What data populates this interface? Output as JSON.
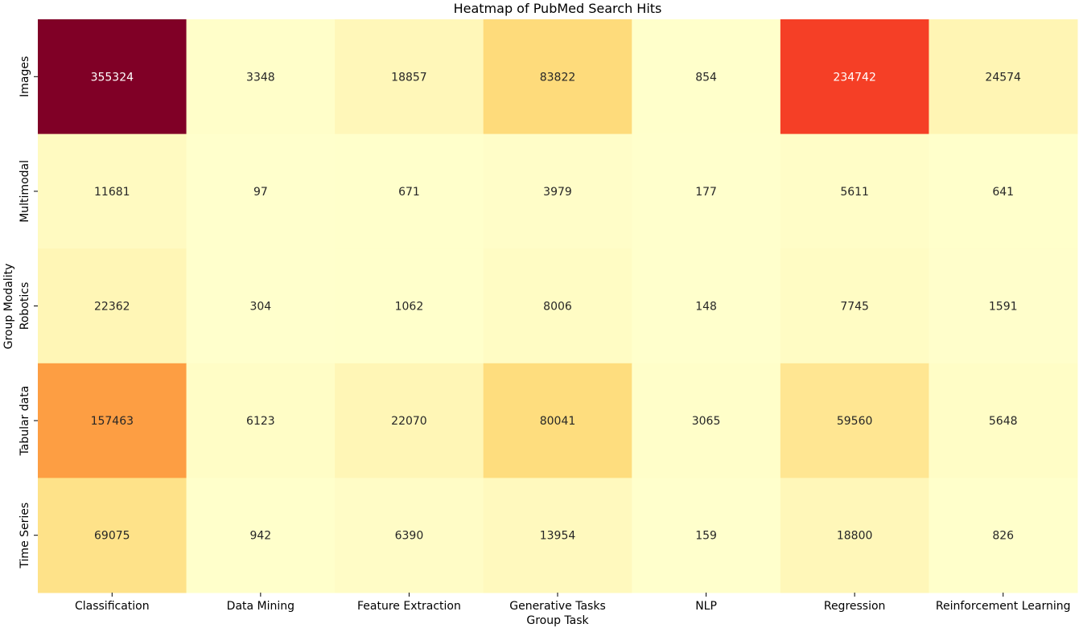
{
  "chart_data": {
    "type": "heatmap",
    "title": "Heatmap of PubMed Search Hits",
    "xlabel": "Group Task",
    "ylabel": "Group Modality",
    "x_categories": [
      "Classification",
      "Data Mining",
      "Feature Extraction",
      "Generative Tasks",
      "NLP",
      "Regression",
      "Reinforcement Learning"
    ],
    "y_categories": [
      "Images",
      "Multimodal",
      "Robotics",
      "Tabular data",
      "Time Series"
    ],
    "values": [
      [
        355324,
        3348,
        18857,
        83822,
        854,
        234742,
        24574
      ],
      [
        11681,
        97,
        671,
        3979,
        177,
        5611,
        641
      ],
      [
        22362,
        304,
        1062,
        8006,
        148,
        7745,
        1591
      ],
      [
        157463,
        6123,
        22070,
        80041,
        3065,
        59560,
        5648
      ],
      [
        69075,
        942,
        6390,
        13954,
        159,
        18800,
        826
      ]
    ],
    "colormap": "YlOrRd",
    "colormap_stops": [
      "#ffffcc",
      "#ffeda0",
      "#fed976",
      "#feb24c",
      "#fd8d3c",
      "#fc4e2a",
      "#e31a1c",
      "#bd0026",
      "#800026"
    ],
    "value_range": [
      97,
      355324
    ],
    "label_colors": {
      "dark": "#262626",
      "light": "#ffffff"
    },
    "colorbar": false,
    "grid": false
  }
}
